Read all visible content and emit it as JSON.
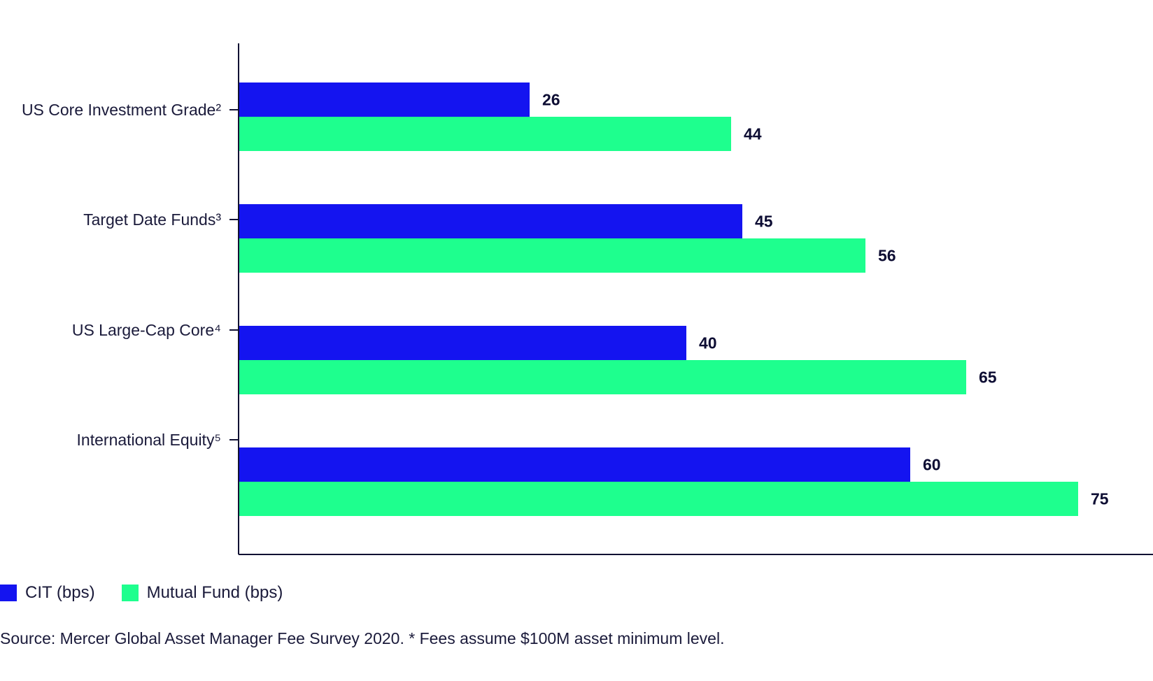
{
  "chart_data": {
    "type": "bar",
    "orientation": "horizontal",
    "categories": [
      "US Core Investment Grade²",
      "Target Date Funds³",
      "US Large-Cap Core⁴",
      "International Equity⁵"
    ],
    "series": [
      {
        "name": "CIT (bps)",
        "color": "#1414f0",
        "values": [
          26,
          45,
          40,
          60
        ]
      },
      {
        "name": "Mutual Fund (bps)",
        "color": "#1eff8e",
        "values": [
          44,
          56,
          65,
          75
        ]
      }
    ],
    "xlim": [
      0,
      82
    ],
    "legend_position": "bottom-left",
    "grid": false
  },
  "source_note": "Source: Mercer Global Asset Manager Fee Survey 2020. * Fees assume $100M asset minimum level."
}
